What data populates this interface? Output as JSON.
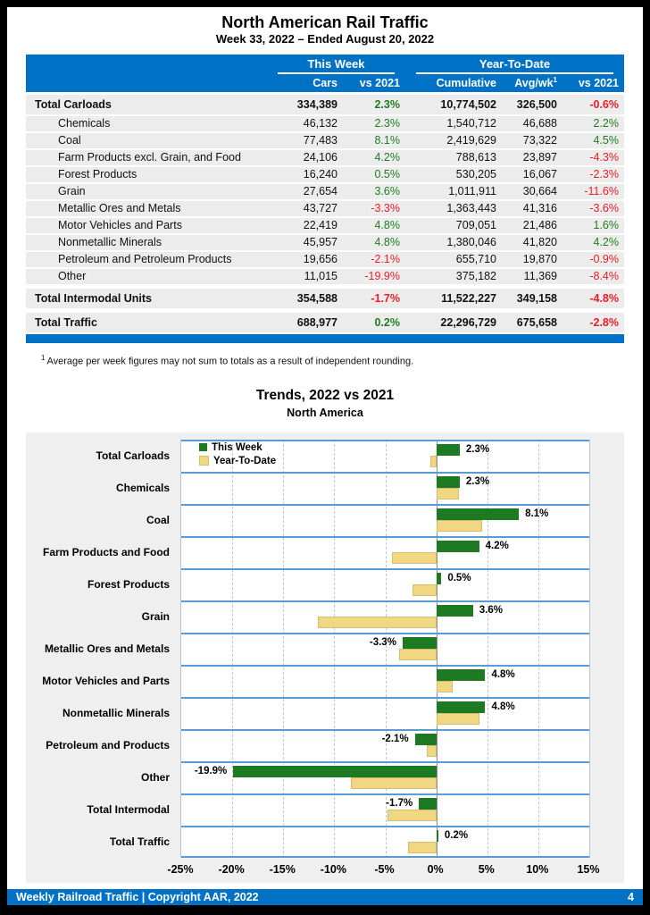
{
  "page": {
    "title": "North American Rail Traffic",
    "subtitle": "Week 33, 2022 – Ended August 20, 2022",
    "footnote_marker": "1",
    "footnote": "Average per week figures may not sum to totals as a result of independent rounding.",
    "footer": {
      "left": "Weekly Railroad Traffic | Copyright AAR, 2022",
      "page_number": "4"
    }
  },
  "table": {
    "group_headers": {
      "this_week": "This Week",
      "ytd": "Year-To-Date"
    },
    "columns": [
      "",
      "Cars",
      "vs 2021",
      "Cumulative",
      "Avg/wk",
      "vs 2021"
    ],
    "avgwk_sup": "1",
    "rows": [
      {
        "label": "Total Carloads",
        "cars": "334,389",
        "wk_pct": "2.3%",
        "wk_dir": "pos",
        "cumulative": "10,774,502",
        "avg": "326,500",
        "ytd_pct": "-0.6%",
        "ytd_dir": "neg",
        "bold": true,
        "indent": false
      },
      {
        "label": "Chemicals",
        "cars": "46,132",
        "wk_pct": "2.3%",
        "wk_dir": "pos",
        "cumulative": "1,540,712",
        "avg": "46,688",
        "ytd_pct": "2.2%",
        "ytd_dir": "pos",
        "bold": false,
        "indent": true
      },
      {
        "label": "Coal",
        "cars": "77,483",
        "wk_pct": "8.1%",
        "wk_dir": "pos",
        "cumulative": "2,419,629",
        "avg": "73,322",
        "ytd_pct": "4.5%",
        "ytd_dir": "pos",
        "bold": false,
        "indent": true
      },
      {
        "label": "Farm Products excl. Grain, and Food",
        "cars": "24,106",
        "wk_pct": "4.2%",
        "wk_dir": "pos",
        "cumulative": "788,613",
        "avg": "23,897",
        "ytd_pct": "-4.3%",
        "ytd_dir": "neg",
        "bold": false,
        "indent": true
      },
      {
        "label": "Forest Products",
        "cars": "16,240",
        "wk_pct": "0.5%",
        "wk_dir": "pos",
        "cumulative": "530,205",
        "avg": "16,067",
        "ytd_pct": "-2.3%",
        "ytd_dir": "neg",
        "bold": false,
        "indent": true
      },
      {
        "label": "Grain",
        "cars": "27,654",
        "wk_pct": "3.6%",
        "wk_dir": "pos",
        "cumulative": "1,011,911",
        "avg": "30,664",
        "ytd_pct": "-11.6%",
        "ytd_dir": "neg",
        "bold": false,
        "indent": true
      },
      {
        "label": "Metallic Ores and Metals",
        "cars": "43,727",
        "wk_pct": "-3.3%",
        "wk_dir": "neg",
        "cumulative": "1,363,443",
        "avg": "41,316",
        "ytd_pct": "-3.6%",
        "ytd_dir": "neg",
        "bold": false,
        "indent": true
      },
      {
        "label": "Motor Vehicles and Parts",
        "cars": "22,419",
        "wk_pct": "4.8%",
        "wk_dir": "pos",
        "cumulative": "709,051",
        "avg": "21,486",
        "ytd_pct": "1.6%",
        "ytd_dir": "pos",
        "bold": false,
        "indent": true
      },
      {
        "label": "Nonmetallic Minerals",
        "cars": "45,957",
        "wk_pct": "4.8%",
        "wk_dir": "pos",
        "cumulative": "1,380,046",
        "avg": "41,820",
        "ytd_pct": "4.2%",
        "ytd_dir": "pos",
        "bold": false,
        "indent": true
      },
      {
        "label": "Petroleum and Petroleum Products",
        "cars": "19,656",
        "wk_pct": "-2.1%",
        "wk_dir": "neg",
        "cumulative": "655,710",
        "avg": "19,870",
        "ytd_pct": "-0.9%",
        "ytd_dir": "neg",
        "bold": false,
        "indent": true
      },
      {
        "label": "Other",
        "cars": "11,015",
        "wk_pct": "-19.9%",
        "wk_dir": "neg",
        "cumulative": "375,182",
        "avg": "11,369",
        "ytd_pct": "-8.4%",
        "ytd_dir": "neg",
        "bold": false,
        "indent": true
      },
      {
        "label": "Total Intermodal Units",
        "cars": "354,588",
        "wk_pct": "-1.7%",
        "wk_dir": "neg",
        "cumulative": "11,522,227",
        "avg": "349,158",
        "ytd_pct": "-4.8%",
        "ytd_dir": "neg",
        "bold": true,
        "indent": false
      },
      {
        "label": "Total Traffic",
        "cars": "688,977",
        "wk_pct": "0.2%",
        "wk_dir": "pos",
        "cumulative": "22,296,729",
        "avg": "675,658",
        "ytd_pct": "-2.8%",
        "ytd_dir": "neg",
        "bold": true,
        "indent": false
      }
    ]
  },
  "chart": {
    "title": "Trends, 2022 vs 2021",
    "subtitle": "North America",
    "legend_this_week": "This Week",
    "legend_ytd": "Year-To-Date"
  },
  "chart_data": {
    "type": "bar",
    "orientation": "horizontal",
    "title": "Trends, 2022 vs 2021",
    "subtitle": "North America",
    "categories": [
      "Total Carloads",
      "Chemicals",
      "Coal",
      "Farm Products and Food",
      "Forest Products",
      "Grain",
      "Metallic Ores and Metals",
      "Motor Vehicles and Parts",
      "Nonmetallic Minerals",
      "Petroleum and Products",
      "Other",
      "Total Intermodal",
      "Total Traffic"
    ],
    "series": [
      {
        "name": "This Week",
        "color": "#1e7a22",
        "values": [
          2.3,
          2.3,
          8.1,
          4.2,
          0.5,
          3.6,
          -3.3,
          4.8,
          4.8,
          -2.1,
          -19.9,
          -1.7,
          0.2
        ]
      },
      {
        "name": "Year-To-Date",
        "color": "#f0d882",
        "values": [
          -0.6,
          2.2,
          4.5,
          -4.3,
          -2.3,
          -11.6,
          -3.6,
          1.6,
          4.2,
          -0.9,
          -8.4,
          -4.8,
          -2.8
        ]
      }
    ],
    "value_labels": [
      "2.3%",
      "2.3%",
      "8.1%",
      "4.2%",
      "0.5%",
      "3.6%",
      "-3.3%",
      "4.8%",
      "4.8%",
      "-2.1%",
      "-19.9%",
      "-1.7%",
      "0.2%"
    ],
    "xlim": [
      -25,
      15
    ],
    "xticks": [
      "-25%",
      "-20%",
      "-15%",
      "-10%",
      "-5%",
      "0%",
      "5%",
      "10%",
      "15%"
    ],
    "grid": "dashed-vertical, solid zero line",
    "legend_position": "top-left inside plot",
    "separator_color": "#5b9bd5"
  },
  "colors": {
    "header_blue": "#0072c6",
    "row_gray": "#ececec",
    "positive_green": "#1e7e1e",
    "negative_red": "#ed1c24",
    "bar_green": "#1e7a22",
    "bar_khaki": "#f0d882",
    "panel_gray": "#efefef"
  }
}
